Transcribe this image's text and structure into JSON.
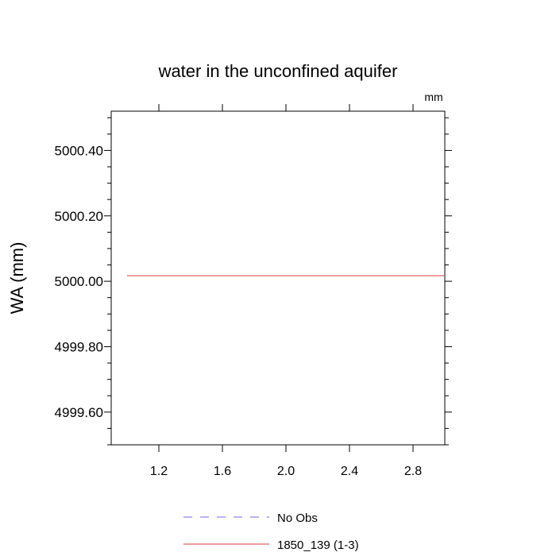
{
  "chart_data": {
    "type": "line",
    "title": "water in the unconfined aquifer",
    "units_label": "mm",
    "xlabel": "",
    "ylabel": "WA  (mm)",
    "xlim": [
      0.9,
      3.0
    ],
    "ylim": [
      4999.5,
      5000.52
    ],
    "x_ticks": [
      1.2,
      1.6,
      2.0,
      2.4,
      2.8
    ],
    "x_tick_labels": [
      "1.2",
      "1.6",
      "2.0",
      "2.4",
      "2.8"
    ],
    "y_ticks": [
      4999.6,
      4999.8,
      5000.0,
      5000.2,
      5000.4
    ],
    "y_tick_labels": [
      "4999.60",
      "4999.80",
      "5000.00",
      "5000.20",
      "5000.40"
    ],
    "grid": false,
    "legend_position": "bottom-center",
    "series": [
      {
        "name": "No Obs",
        "style": "dashed",
        "color": "#8a8ae6",
        "x": [],
        "y": []
      },
      {
        "name": "1850_139 (1-3)",
        "style": "solid",
        "color": "#e06060",
        "x": [
          1.0,
          3.0
        ],
        "y": [
          5000.017,
          5000.017
        ]
      }
    ]
  }
}
